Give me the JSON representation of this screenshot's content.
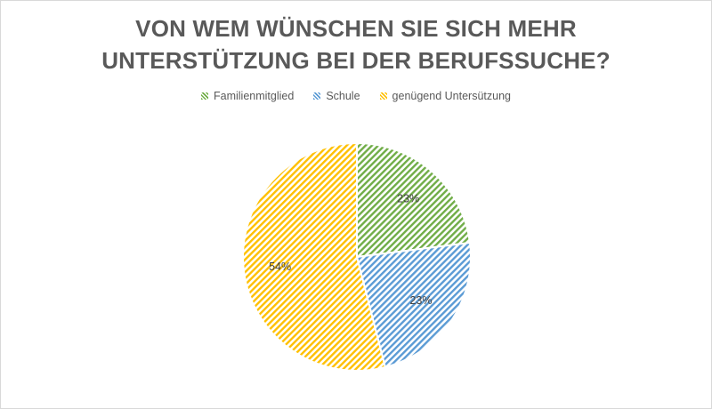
{
  "chart_data": {
    "type": "pie",
    "title": "VON WEM WÜNSCHEN SIE SICH MEHR UNTERSTÜTZUNG BEI DER BERUFSSUCHE?",
    "title_lines": [
      "VON WEM WÜNSCHEN SIE SICH MEHR",
      "UNTERSTÜTZUNG BEI DER BERUFSSUCHE?"
    ],
    "legend_position": "top",
    "slices": [
      {
        "name": "Familienmitglied",
        "value": 23,
        "label": "23%",
        "color": "#70ad47"
      },
      {
        "name": "Schule",
        "value": 23,
        "label": "23%",
        "color": "#5b9bd5"
      },
      {
        "name": "genügend Untersützung",
        "value": 54,
        "label": "54%",
        "color": "#ffc000"
      }
    ]
  }
}
